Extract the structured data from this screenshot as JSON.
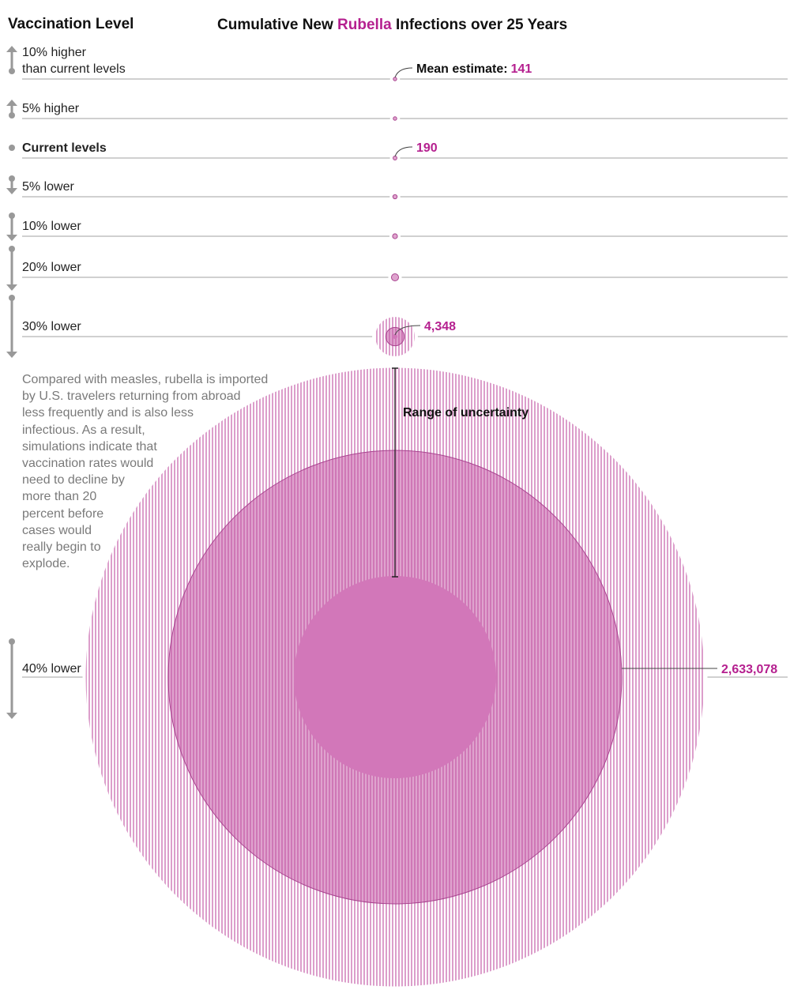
{
  "header": {
    "left_title": "Vaccination Level",
    "title_pre": "Cumulative New ",
    "title_highlight": "Rubella",
    "title_post": " Infections over 25 Years"
  },
  "colors": {
    "accent": "#b5208f",
    "mean_fill": "#c458a6",
    "lower_fill": "#d277b9",
    "stripe": "#dc9ecb",
    "rule": "#b3b3b3",
    "arrow": "#999999"
  },
  "annotations": {
    "mean_label": "Mean estimate:",
    "range_label": "Range of uncertainty"
  },
  "note": [
    "Compared with measles, rubella is imported",
    "by U.S. travelers returning from abroad",
    "less frequently and is also less",
    "infectious. As a result,",
    "simulations indicate that",
    "vaccination rates would",
    "need to decline by",
    "more than 20",
    "percent before",
    "cases would",
    "really begin to",
    "explode."
  ],
  "chart_data": {
    "type": "proportional-circles",
    "title": "Cumulative New Rubella Infections over 25 Years",
    "scale": "area proportional to cases",
    "rows": [
      {
        "level": "10% higher",
        "label_lines": [
          "10% higher",
          "than current levels"
        ],
        "direction": "up",
        "mean": 141,
        "mean_label": "141",
        "range_estimated": null
      },
      {
        "level": "5% higher",
        "label_lines": [
          "5% higher"
        ],
        "direction": "up",
        "mean": 160,
        "mean_label": null,
        "range_estimated": null
      },
      {
        "level": "Current levels",
        "label_lines": [
          "Current levels"
        ],
        "direction": "none",
        "bold": true,
        "mean": 190,
        "mean_label": "190",
        "range_estimated": null
      },
      {
        "level": "5% lower",
        "label_lines": [
          "5% lower"
        ],
        "direction": "down",
        "mean": 230,
        "mean_label": null,
        "range_estimated": null
      },
      {
        "level": "10% lower",
        "label_lines": [
          "10% lower"
        ],
        "direction": "down",
        "mean": 300,
        "mean_label": null,
        "range_estimated": null
      },
      {
        "level": "20% lower",
        "label_lines": [
          "20% lower"
        ],
        "direction": "down",
        "mean": 650,
        "mean_label": null,
        "range_estimated": null
      },
      {
        "level": "30% lower",
        "label_lines": [
          "30% lower"
        ],
        "direction": "down",
        "mean": 4348,
        "mean_label": "4,348",
        "range_estimated": [
          300,
          19800
        ]
      },
      {
        "level": "40% lower",
        "label_lines": [
          "40% lower"
        ],
        "direction": "down",
        "mean": 2633078,
        "mean_label": "2,633,078",
        "range_estimated": [
          524000,
          4900000
        ]
      }
    ]
  }
}
